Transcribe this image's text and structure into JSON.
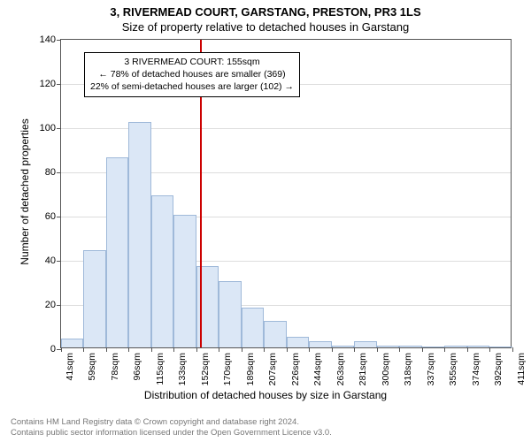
{
  "title_main": "3, RIVERMEAD COURT, GARSTANG, PRESTON, PR3 1LS",
  "title_sub": "Size of property relative to detached houses in Garstang",
  "y_label": "Number of detached properties",
  "x_label": "Distribution of detached houses by size in Garstang",
  "chart": {
    "type": "histogram",
    "ylim": [
      0,
      140
    ],
    "ytick_step": 20,
    "xticks": [
      41,
      59,
      78,
      96,
      115,
      133,
      152,
      170,
      189,
      207,
      226,
      244,
      263,
      281,
      300,
      318,
      337,
      355,
      374,
      392,
      411
    ],
    "xtick_unit": "sqm",
    "bar_fill": "#dbe7f6",
    "bar_stroke": "#9fb9d9",
    "grid_color": "#dddddd",
    "axis_color": "#555555",
    "background": "#ffffff",
    "marker_value": 155,
    "marker_color": "#cc0000",
    "values": [
      4,
      44,
      86,
      102,
      69,
      60,
      37,
      30,
      18,
      12,
      5,
      3,
      1,
      3,
      1,
      1,
      0,
      1,
      1,
      0
    ]
  },
  "annotation": {
    "line1": "3 RIVERMEAD COURT: 155sqm",
    "line2": "← 78% of detached houses are smaller (369)",
    "line3": "22% of semi-detached houses are larger (102) →"
  },
  "footer": {
    "line1": "Contains HM Land Registry data © Crown copyright and database right 2024.",
    "line2": "Contains public sector information licensed under the Open Government Licence v3.0."
  }
}
